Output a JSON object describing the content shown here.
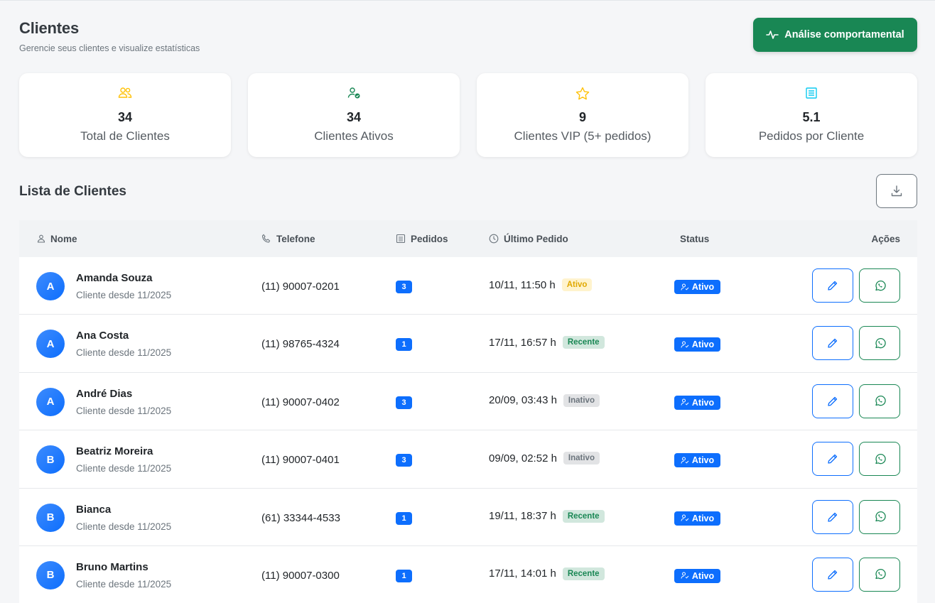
{
  "header": {
    "title": "Clientes",
    "subtitle": "Gerencie seus clientes e visualize estatísticas",
    "analysis_button": "Análise comportamental"
  },
  "stats": [
    {
      "icon": "users-icon",
      "value": "34",
      "label": "Total de Clientes",
      "color": "#ffc107"
    },
    {
      "icon": "user-check-icon",
      "value": "34",
      "label": "Clientes Ativos",
      "color": "#198754"
    },
    {
      "icon": "star-icon",
      "value": "9",
      "label": "Clientes VIP (5+ pedidos)",
      "color": "#ffc107"
    },
    {
      "icon": "receipt-icon",
      "value": "5.1",
      "label": "Pedidos por Cliente",
      "color": "#0dcaf0"
    }
  ],
  "list": {
    "title": "Lista de Clientes",
    "columns": {
      "name": "Nome",
      "phone": "Telefone",
      "orders": "Pedidos",
      "last_order": "Último Pedido",
      "status": "Status",
      "actions": "Ações"
    },
    "rows": [
      {
        "initial": "A",
        "name": "Amanda Souza",
        "since": "Cliente desde 11/2025",
        "phone": "(11) 90007-0201",
        "orders": "3",
        "last_order": "10/11, 11:50 h",
        "activity": "Ativo",
        "activity_type": "ativo",
        "status": "Ativo"
      },
      {
        "initial": "A",
        "name": "Ana Costa",
        "since": "Cliente desde 11/2025",
        "phone": "(11) 98765-4324",
        "orders": "1",
        "last_order": "17/11, 16:57 h",
        "activity": "Recente",
        "activity_type": "recente",
        "status": "Ativo"
      },
      {
        "initial": "A",
        "name": "André Dias",
        "since": "Cliente desde 11/2025",
        "phone": "(11) 90007-0402",
        "orders": "3",
        "last_order": "20/09, 03:43 h",
        "activity": "Inativo",
        "activity_type": "inativo",
        "status": "Ativo"
      },
      {
        "initial": "B",
        "name": "Beatriz Moreira",
        "since": "Cliente desde 11/2025",
        "phone": "(11) 90007-0401",
        "orders": "3",
        "last_order": "09/09, 02:52 h",
        "activity": "Inativo",
        "activity_type": "inativo",
        "status": "Ativo"
      },
      {
        "initial": "B",
        "name": "Bianca",
        "since": "Cliente desde 11/2025",
        "phone": "(61) 33344-4533",
        "orders": "1",
        "last_order": "19/11, 18:37 h",
        "activity": "Recente",
        "activity_type": "recente",
        "status": "Ativo"
      },
      {
        "initial": "B",
        "name": "Bruno Martins",
        "since": "Cliente desde 11/2025",
        "phone": "(11) 90007-0300",
        "orders": "1",
        "last_order": "17/11, 14:01 h",
        "activity": "Recente",
        "activity_type": "recente",
        "status": "Ativo"
      }
    ]
  },
  "colors": {
    "primary": "#0d6efd",
    "success": "#198754",
    "warning": "#ffc107",
    "info": "#0dcaf0"
  }
}
